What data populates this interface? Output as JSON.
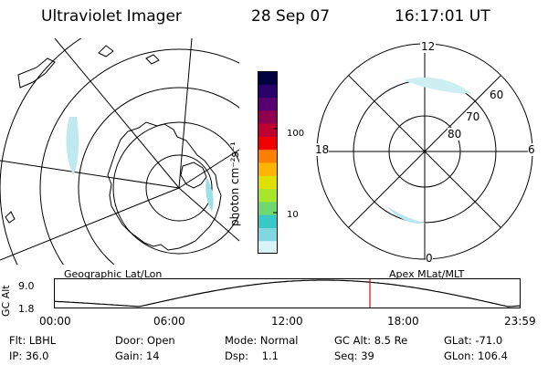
{
  "header": {
    "title": "Ultraviolet Imager",
    "date": "28 Sep 07",
    "time": "16:17:01 UT"
  },
  "panels": {
    "left_label": "Geographic Lat/Lon",
    "right_label": "Apex MLat/MLT"
  },
  "polar": {
    "clock_labels": {
      "top": "12",
      "left": "18",
      "right": "6",
      "bottom": "0"
    },
    "lat_labels": [
      "60",
      "70",
      "80"
    ]
  },
  "colorbar": {
    "unit_label": "photon cm⁻²s⁻¹",
    "ticks": [
      "100",
      "10"
    ],
    "colors": [
      "#d9f4f7",
      "#7fd8e0",
      "#37c8c8",
      "#6fd86f",
      "#a8e62a",
      "#e0e000",
      "#ffb400",
      "#ff8000",
      "#f00000",
      "#c00030",
      "#900050",
      "#580070",
      "#2a006a",
      "#000040"
    ]
  },
  "altitude_plot": {
    "ylabel": "GC Alt",
    "yticks": [
      "9.0",
      "1.8"
    ],
    "xticks": [
      "00:00",
      "06:00",
      "12:00",
      "18:00",
      "23:59"
    ],
    "current_time_marker": "16:17",
    "marker_color": "#d01010"
  },
  "info": {
    "row1": [
      {
        "label": "Flt:",
        "value": "LBHL"
      },
      {
        "label": "Door:",
        "value": "Open"
      },
      {
        "label": "Mode:",
        "value": "Normal"
      },
      {
        "label": "GC Alt:",
        "value": "8.5 Re"
      },
      {
        "label": "GLat:",
        "value": "-71.0"
      }
    ],
    "row2": [
      {
        "label": "IP:",
        "value": "36.0"
      },
      {
        "label": "Gain:",
        "value": "14"
      },
      {
        "label": "Dsp:",
        "value": "1.1"
      },
      {
        "label": "Seq:",
        "value": "39"
      },
      {
        "label": "GLon:",
        "value": "106.4"
      }
    ]
  }
}
